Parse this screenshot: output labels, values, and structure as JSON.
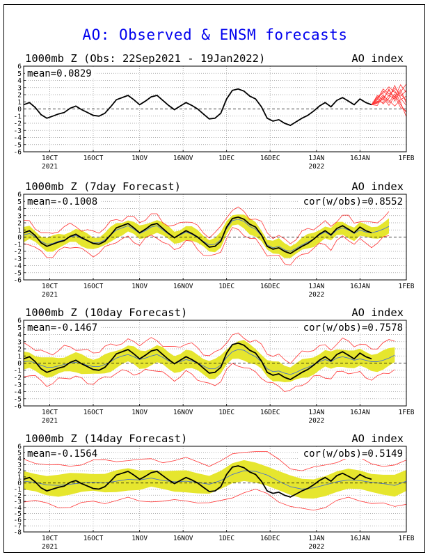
{
  "title": "AO: Observed & ENSM forecasts",
  "colors": {
    "title": "#0000ee",
    "observed": "#000000",
    "ensemble": "#ff3333",
    "spread": "#e6e62e",
    "mean": "#4a73c8"
  },
  "x_ticks": [
    {
      "day": 9,
      "label": "10CT",
      "sub": "2021"
    },
    {
      "day": 24,
      "label": "16OCT",
      "sub": ""
    },
    {
      "day": 40,
      "label": "1NOV",
      "sub": ""
    },
    {
      "day": 55,
      "label": "16NOV",
      "sub": ""
    },
    {
      "day": 70,
      "label": "1DEC",
      "sub": ""
    },
    {
      "day": 85,
      "label": "16DEC",
      "sub": ""
    },
    {
      "day": 101,
      "label": "1JAN",
      "sub": "2022"
    },
    {
      "day": 116,
      "label": "16JAN",
      "sub": ""
    },
    {
      "day": 132,
      "label": "1FEB",
      "sub": ""
    }
  ],
  "chart_data": [
    {
      "type": "line",
      "title": "1000mb Z (Obs: 22Sep2021 - 19Jan2022)",
      "right_label": "AO index",
      "mean_label": "mean=0.0829",
      "cor_label": "",
      "ylim": [
        -6,
        6
      ],
      "yticks": [
        -6,
        -5,
        -4,
        -3,
        -2,
        -1,
        0,
        1,
        2,
        3,
        4,
        5,
        6
      ],
      "xlim_days": [
        0,
        132
      ],
      "series": [
        {
          "role": "observed",
          "x": [
            0,
            2,
            4,
            6,
            8,
            10,
            12,
            14,
            16,
            18,
            20,
            22,
            24,
            26,
            28,
            30,
            32,
            34,
            36,
            38,
            40,
            42,
            44,
            46,
            48,
            50,
            52,
            54,
            56,
            58,
            60,
            62,
            64,
            66,
            68,
            70,
            72,
            74,
            76,
            78,
            80,
            82,
            84,
            86,
            88,
            90,
            92,
            94,
            96,
            98,
            100,
            102,
            104,
            106,
            108,
            110,
            112,
            114,
            116,
            118,
            120
          ],
          "y": [
            0.6,
            0.9,
            0.2,
            -0.8,
            -1.3,
            -1.0,
            -0.7,
            -0.5,
            0.1,
            0.4,
            -0.1,
            -0.5,
            -0.9,
            -1.0,
            -0.6,
            0.3,
            1.3,
            1.6,
            1.9,
            1.3,
            0.6,
            1.1,
            1.7,
            1.9,
            1.2,
            0.5,
            -0.1,
            0.4,
            0.9,
            0.5,
            0.0,
            -0.7,
            -1.4,
            -1.3,
            -0.6,
            1.4,
            2.6,
            2.8,
            2.5,
            1.8,
            1.4,
            0.3,
            -1.3,
            -1.7,
            -1.5,
            -2.0,
            -2.3,
            -1.8,
            -1.3,
            -0.9,
            -0.3,
            0.4,
            0.9,
            0.3,
            1.2,
            1.6,
            1.1,
            0.6,
            1.4,
            0.9,
            0.6
          ]
        },
        {
          "role": "ensemble",
          "x": [
            120,
            122,
            124,
            126,
            128,
            130,
            132
          ],
          "members": [
            [
              0.6,
              1.3,
              2.5,
              1.8,
              2.9,
              2.1,
              1.2
            ],
            [
              0.6,
              0.8,
              1.4,
              2.6,
              1.6,
              3.4,
              2.3
            ],
            [
              0.6,
              1.6,
              0.7,
              1.5,
              3.3,
              1.5,
              0.5
            ],
            [
              0.6,
              1.0,
              2.0,
              0.9,
              2.1,
              0.6,
              -0.5
            ],
            [
              0.6,
              1.9,
              1.2,
              2.8,
              1.1,
              2.4,
              3.5
            ],
            [
              0.6,
              0.5,
              1.8,
              1.2,
              0.4,
              1.3,
              1.8
            ],
            [
              0.6,
              1.4,
              2.8,
              2.1,
              2.6,
              0.9,
              -1.1
            ],
            [
              0.6,
              1.1,
              0.9,
              1.9,
              1.4,
              2.7,
              0.8
            ],
            [
              0.6,
              1.7,
              2.2,
              3.1,
              2.3,
              1.8,
              2.6
            ],
            [
              0.6,
              0.9,
              1.6,
              0.5,
              1.8,
              0.2,
              -0.3
            ]
          ]
        }
      ]
    },
    {
      "type": "line",
      "title": "1000mb Z (7day Forecast)",
      "right_label": "AO index",
      "mean_label": "mean=-0.1008",
      "cor_label": "cor(w/obs)=0.8552",
      "ylim": [
        -6,
        6
      ],
      "yticks": [
        -6,
        -5,
        -4,
        -3,
        -2,
        -1,
        0,
        1,
        2,
        3,
        4,
        5,
        6
      ],
      "xlim_days": [
        0,
        132
      ],
      "observed_x": [
        0,
        2,
        4,
        6,
        8,
        10,
        12,
        14,
        16,
        18,
        20,
        22,
        24,
        26,
        28,
        30,
        32,
        34,
        36,
        38,
        40,
        42,
        44,
        46,
        48,
        50,
        52,
        54,
        56,
        58,
        60,
        62,
        64,
        66,
        68,
        70,
        72,
        74,
        76,
        78,
        80,
        82,
        84,
        86,
        88,
        90,
        92,
        94,
        96,
        98,
        100,
        102,
        104,
        106,
        108,
        110,
        112,
        114,
        116,
        118,
        120
      ],
      "observed_y": [
        0.6,
        0.9,
        0.2,
        -0.8,
        -1.3,
        -1.0,
        -0.7,
        -0.5,
        0.1,
        0.4,
        -0.1,
        -0.5,
        -0.9,
        -1.0,
        -0.6,
        0.3,
        1.3,
        1.6,
        1.9,
        1.3,
        0.6,
        1.1,
        1.7,
        1.9,
        1.2,
        0.5,
        -0.1,
        0.4,
        0.9,
        0.5,
        0.0,
        -0.7,
        -1.4,
        -1.3,
        -0.6,
        1.4,
        2.6,
        2.8,
        2.5,
        1.8,
        1.4,
        0.3,
        -1.3,
        -1.7,
        -1.5,
        -2.0,
        -2.3,
        -1.8,
        -1.3,
        -0.9,
        -0.3,
        0.4,
        0.9,
        0.3,
        1.2,
        1.6,
        1.1,
        0.6,
        1.4,
        0.9,
        0.6
      ],
      "forecast_x": [
        0,
        2,
        4,
        6,
        8,
        10,
        12,
        14,
        16,
        18,
        20,
        22,
        24,
        26,
        28,
        30,
        32,
        34,
        36,
        38,
        40,
        42,
        44,
        46,
        48,
        50,
        52,
        54,
        56,
        58,
        60,
        62,
        64,
        66,
        68,
        70,
        72,
        74,
        76,
        78,
        80,
        82,
        84,
        86,
        88,
        90,
        92,
        94,
        96,
        98,
        100,
        102,
        104,
        106,
        108,
        110,
        112,
        114,
        116,
        118,
        120,
        122,
        124,
        126
      ],
      "forecast_mean": [
        0.3,
        0.5,
        0.0,
        -0.6,
        -1.0,
        -0.9,
        -0.6,
        -0.4,
        0.0,
        0.2,
        -0.2,
        -0.5,
        -0.8,
        -0.8,
        -0.4,
        0.3,
        1.0,
        1.3,
        1.6,
        1.1,
        0.5,
        0.9,
        1.4,
        1.6,
        1.0,
        0.4,
        -0.1,
        0.3,
        0.7,
        0.4,
        -0.1,
        -0.6,
        -1.1,
        -1.0,
        -0.4,
        1.2,
        2.3,
        2.5,
        2.2,
        1.5,
        1.1,
        0.2,
        -1.1,
        -1.5,
        -1.3,
        -1.8,
        -2.0,
        -1.6,
        -1.1,
        -0.7,
        -0.3,
        0.3,
        0.7,
        0.2,
        1.0,
        1.3,
        1.0,
        0.5,
        1.0,
        0.7,
        0.6,
        0.8,
        1.1,
        1.5
      ],
      "spread": 0.9,
      "envelope": 1.5
    },
    {
      "type": "line",
      "title": "1000mb Z (10day Forecast)",
      "right_label": "AO index",
      "mean_label": "mean=-0.1467",
      "cor_label": "cor(w/obs)=0.7578",
      "ylim": [
        -6,
        6
      ],
      "yticks": [
        -6,
        -5,
        -4,
        -3,
        -2,
        -1,
        0,
        1,
        2,
        3,
        4,
        5,
        6
      ],
      "xlim_days": [
        0,
        132
      ],
      "observed_x": [
        0,
        2,
        4,
        6,
        8,
        10,
        12,
        14,
        16,
        18,
        20,
        22,
        24,
        26,
        28,
        30,
        32,
        34,
        36,
        38,
        40,
        42,
        44,
        46,
        48,
        50,
        52,
        54,
        56,
        58,
        60,
        62,
        64,
        66,
        68,
        70,
        72,
        74,
        76,
        78,
        80,
        82,
        84,
        86,
        88,
        90,
        92,
        94,
        96,
        98,
        100,
        102,
        104,
        106,
        108,
        110,
        112,
        114,
        116,
        118,
        120
      ],
      "observed_y": [
        0.6,
        0.9,
        0.2,
        -0.8,
        -1.3,
        -1.0,
        -0.7,
        -0.5,
        0.1,
        0.4,
        -0.1,
        -0.5,
        -0.9,
        -1.0,
        -0.6,
        0.3,
        1.3,
        1.6,
        1.9,
        1.3,
        0.6,
        1.1,
        1.7,
        1.9,
        1.2,
        0.5,
        -0.1,
        0.4,
        0.9,
        0.5,
        0.0,
        -0.7,
        -1.4,
        -1.3,
        -0.6,
        1.4,
        2.6,
        2.8,
        2.5,
        1.8,
        1.4,
        0.3,
        -1.3,
        -1.7,
        -1.5,
        -2.0,
        -2.3,
        -1.8,
        -1.3,
        -0.9,
        -0.3,
        0.4,
        0.9,
        0.3,
        1.2,
        1.6,
        1.1,
        0.6,
        1.4,
        0.9,
        0.6
      ],
      "forecast_x": [
        0,
        2,
        4,
        6,
        8,
        10,
        12,
        14,
        16,
        18,
        20,
        22,
        24,
        26,
        28,
        30,
        32,
        34,
        36,
        38,
        40,
        42,
        44,
        46,
        48,
        50,
        52,
        54,
        56,
        58,
        60,
        62,
        64,
        66,
        68,
        70,
        72,
        74,
        76,
        78,
        80,
        82,
        84,
        86,
        88,
        90,
        92,
        94,
        96,
        98,
        100,
        102,
        104,
        106,
        108,
        110,
        112,
        114,
        116,
        118,
        120,
        122,
        124,
        126,
        128
      ],
      "forecast_mean": [
        0.2,
        0.3,
        0.0,
        -0.3,
        -0.6,
        -0.6,
        -0.4,
        -0.2,
        0.0,
        0.1,
        -0.1,
        -0.3,
        -0.5,
        -0.5,
        -0.2,
        0.2,
        0.7,
        1.0,
        1.2,
        0.9,
        0.5,
        0.7,
        1.0,
        1.2,
        0.8,
        0.3,
        0.0,
        0.2,
        0.5,
        0.3,
        0.0,
        -0.4,
        -0.8,
        -0.8,
        -0.3,
        0.8,
        1.6,
        1.9,
        1.8,
        1.3,
        0.9,
        0.2,
        -0.8,
        -1.2,
        -1.1,
        -1.4,
        -1.6,
        -1.3,
        -0.9,
        -0.6,
        -0.2,
        0.2,
        0.5,
        0.2,
        0.7,
        0.9,
        0.7,
        0.4,
        0.6,
        0.4,
        0.2,
        0.2,
        0.4,
        0.7,
        1.1
      ],
      "spread": 1.2,
      "envelope": 2.1
    },
    {
      "type": "line",
      "title": "1000mb Z (14day Forecast)",
      "right_label": "AO index",
      "mean_label": "mean=-0.1564",
      "cor_label": "cor(w/obs)=0.5149",
      "ylim": [
        -8,
        6
      ],
      "yticks": [
        -8,
        -7,
        -6,
        -5,
        -4,
        -3,
        -2,
        -1,
        0,
        1,
        2,
        3,
        4,
        5,
        6
      ],
      "xlim_days": [
        0,
        132
      ],
      "observed_x": [
        0,
        2,
        4,
        6,
        8,
        10,
        12,
        14,
        16,
        18,
        20,
        22,
        24,
        26,
        28,
        30,
        32,
        34,
        36,
        38,
        40,
        42,
        44,
        46,
        48,
        50,
        52,
        54,
        56,
        58,
        60,
        62,
        64,
        66,
        68,
        70,
        72,
        74,
        76,
        78,
        80,
        82,
        84,
        86,
        88,
        90,
        92,
        94,
        96,
        98,
        100,
        102,
        104,
        106,
        108,
        110,
        112,
        114,
        116,
        118,
        120
      ],
      "observed_y": [
        0.6,
        0.9,
        0.2,
        -0.8,
        -1.3,
        -1.0,
        -0.7,
        -0.5,
        0.1,
        0.4,
        -0.1,
        -0.5,
        -0.9,
        -1.0,
        -0.6,
        0.3,
        1.3,
        1.6,
        1.9,
        1.3,
        0.6,
        1.1,
        1.7,
        1.9,
        1.2,
        0.5,
        -0.1,
        0.4,
        0.9,
        0.5,
        0.0,
        -0.7,
        -1.4,
        -1.3,
        -0.6,
        1.4,
        2.6,
        2.8,
        2.5,
        1.8,
        1.4,
        0.3,
        -1.3,
        -1.7,
        -1.5,
        -2.0,
        -2.3,
        -1.8,
        -1.3,
        -0.9,
        -0.3,
        0.4,
        0.9,
        0.3,
        1.2,
        1.6,
        1.1,
        0.6,
        1.4,
        0.9,
        0.6
      ],
      "forecast_x": [
        0,
        4,
        8,
        12,
        16,
        20,
        24,
        28,
        32,
        36,
        40,
        44,
        48,
        52,
        56,
        60,
        64,
        68,
        72,
        76,
        80,
        84,
        88,
        92,
        96,
        100,
        104,
        108,
        112,
        116,
        120,
        124,
        128,
        132
      ],
      "forecast_mean": [
        0.3,
        0.1,
        -0.3,
        -0.4,
        -0.2,
        0.0,
        0.1,
        0.0,
        0.3,
        0.6,
        0.5,
        0.8,
        0.4,
        0.2,
        0.3,
        0.1,
        -0.2,
        0.4,
        1.4,
        2.0,
        1.9,
        1.3,
        0.3,
        -0.6,
        -1.0,
        -0.8,
        -0.3,
        0.2,
        0.5,
        0.4,
        0.1,
        -0.1,
        -0.4,
        0.3
      ],
      "spread": 1.6,
      "envelope": 3.3
    }
  ]
}
